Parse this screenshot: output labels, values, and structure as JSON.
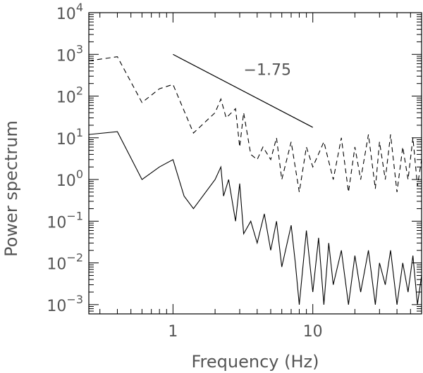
{
  "chart_data": {
    "type": "line",
    "xlabel": "Frequency (Hz)",
    "ylabel": "Power spectrum",
    "x_scale": "log",
    "y_scale": "log",
    "xlim": [
      0.25,
      60
    ],
    "ylim": [
      0.0006,
      10000
    ],
    "x_ticks": [
      {
        "value": 1,
        "label": "1"
      },
      {
        "value": 10,
        "label": "10"
      }
    ],
    "y_ticks": [
      {
        "value": 10000,
        "base": "10",
        "exp": "4"
      },
      {
        "value": 1000,
        "base": "10",
        "exp": "3"
      },
      {
        "value": 100,
        "base": "10",
        "exp": "2"
      },
      {
        "value": 10,
        "base": "10",
        "exp": "1"
      },
      {
        "value": 1,
        "base": "10",
        "exp": "0"
      },
      {
        "value": 0.1,
        "base": "10",
        "exp": "−1"
      },
      {
        "value": 0.01,
        "base": "10",
        "exp": "−2"
      },
      {
        "value": 0.001,
        "base": "10",
        "exp": "−3"
      }
    ],
    "annotation": {
      "text": "−1.75",
      "line": [
        [
          1.0,
          1000
        ],
        [
          10.0,
          17.8
        ]
      ],
      "text_at": [
        3.2,
        320
      ]
    },
    "series": [
      {
        "style": "dashed",
        "points": [
          [
            0.25,
            700
          ],
          [
            0.4,
            880
          ],
          [
            0.6,
            70
          ],
          [
            0.8,
            150
          ],
          [
            1.0,
            190
          ],
          [
            1.4,
            13
          ],
          [
            2.0,
            40
          ],
          [
            2.2,
            85
          ],
          [
            2.4,
            30
          ],
          [
            2.8,
            50
          ],
          [
            3.0,
            6
          ],
          [
            3.2,
            40
          ],
          [
            3.6,
            4
          ],
          [
            4.0,
            3
          ],
          [
            4.4,
            6
          ],
          [
            5.0,
            3
          ],
          [
            5.5,
            10
          ],
          [
            6.0,
            1
          ],
          [
            7.0,
            8
          ],
          [
            8.0,
            0.5
          ],
          [
            9.0,
            6
          ],
          [
            10.0,
            2
          ],
          [
            12.0,
            8
          ],
          [
            14.0,
            1
          ],
          [
            16.0,
            10
          ],
          [
            18.0,
            0.5
          ],
          [
            20.0,
            6
          ],
          [
            22.0,
            1
          ],
          [
            25.0,
            12
          ],
          [
            28.0,
            0.6
          ],
          [
            30.0,
            8
          ],
          [
            33.0,
            1
          ],
          [
            36.0,
            12
          ],
          [
            40.0,
            0.5
          ],
          [
            44.0,
            6
          ],
          [
            48.0,
            1
          ],
          [
            52.0,
            10
          ],
          [
            56.0,
            0.7
          ],
          [
            60.0,
            3
          ]
        ]
      },
      {
        "style": "solid",
        "points": [
          [
            0.25,
            12
          ],
          [
            0.4,
            14
          ],
          [
            0.6,
            1.0
          ],
          [
            0.8,
            2.0
          ],
          [
            1.0,
            3.0
          ],
          [
            1.2,
            0.4
          ],
          [
            1.4,
            0.2
          ],
          [
            2.0,
            1.0
          ],
          [
            2.2,
            2.0
          ],
          [
            2.3,
            0.4
          ],
          [
            2.5,
            1.0
          ],
          [
            2.8,
            0.1
          ],
          [
            3.0,
            0.8
          ],
          [
            3.2,
            0.05
          ],
          [
            3.6,
            0.1
          ],
          [
            4.0,
            0.03
          ],
          [
            4.5,
            0.15
          ],
          [
            5.0,
            0.02
          ],
          [
            5.5,
            0.1
          ],
          [
            6.0,
            0.008
          ],
          [
            7.0,
            0.08
          ],
          [
            7.5,
            0.01
          ],
          [
            8.0,
            0.001
          ],
          [
            9.0,
            0.06
          ],
          [
            10.0,
            0.002
          ],
          [
            11.0,
            0.04
          ],
          [
            12.0,
            0.001
          ],
          [
            13.0,
            0.03
          ],
          [
            14.0,
            0.003
          ],
          [
            16.0,
            0.02
          ],
          [
            18.0,
            0.001
          ],
          [
            20.0,
            0.015
          ],
          [
            22.0,
            0.002
          ],
          [
            25.0,
            0.02
          ],
          [
            28.0,
            0.001
          ],
          [
            30.0,
            0.01
          ],
          [
            33.0,
            0.003
          ],
          [
            36.0,
            0.02
          ],
          [
            40.0,
            0.001
          ],
          [
            44.0,
            0.01
          ],
          [
            48.0,
            0.002
          ],
          [
            52.0,
            0.015
          ],
          [
            56.0,
            0.001
          ],
          [
            60.0,
            0.005
          ]
        ]
      }
    ]
  }
}
